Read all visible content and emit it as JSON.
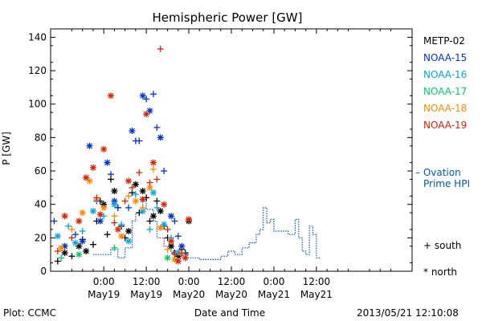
{
  "chart_data": {
    "type": "scatter",
    "title": "Hemispheric Power [GW]",
    "ylabel": "P [GW]",
    "xlabel": "Date and Time",
    "ylim": [
      0,
      145
    ],
    "yticks": [
      0,
      20,
      40,
      60,
      80,
      100,
      120,
      140
    ],
    "xrange_hours": [
      -15,
      87
    ],
    "xticks": [
      {
        "h": 0,
        "time": "0:00",
        "date": "May19"
      },
      {
        "h": 12,
        "time": "12:00",
        "date": "May19"
      },
      {
        "h": 24,
        "time": "0:00",
        "date": "May20"
      },
      {
        "h": 36,
        "time": "12:00",
        "date": "May20"
      },
      {
        "h": 48,
        "time": "0:00",
        "date": "May21"
      },
      {
        "h": 60,
        "time": "12:00",
        "date": "May21"
      }
    ],
    "legend_position": "right",
    "series": [
      {
        "name": "METP-02",
        "color": "#000000",
        "points": [
          [
            -13,
            6,
            "+"
          ],
          [
            -11,
            11,
            "*"
          ],
          [
            -9,
            9,
            "+"
          ],
          [
            -7,
            15,
            "*"
          ],
          [
            -6,
            19,
            "+"
          ],
          [
            -5,
            12,
            "*"
          ],
          [
            -3,
            16,
            "+"
          ],
          [
            -2,
            30,
            "+"
          ],
          [
            -1,
            42,
            "+"
          ],
          [
            0,
            40,
            "*"
          ],
          [
            1,
            22,
            "+"
          ],
          [
            2,
            55,
            "+"
          ],
          [
            3,
            48,
            "*"
          ],
          [
            4,
            38,
            "+"
          ],
          [
            5,
            27,
            "+"
          ],
          [
            6,
            20,
            "+"
          ],
          [
            7,
            24,
            "*"
          ],
          [
            8,
            47,
            "+"
          ],
          [
            9,
            52,
            "*"
          ],
          [
            10,
            35,
            "+"
          ],
          [
            11,
            48,
            "*"
          ],
          [
            12,
            44,
            "+"
          ],
          [
            13,
            30,
            "+"
          ],
          [
            14,
            33,
            "*"
          ],
          [
            15,
            42,
            "+"
          ],
          [
            16,
            36,
            "*"
          ],
          [
            17,
            27,
            "+"
          ],
          [
            18,
            20,
            "+"
          ],
          [
            19,
            15,
            "*"
          ],
          [
            20,
            11,
            "+"
          ],
          [
            21,
            9,
            "*"
          ],
          [
            22,
            13,
            "+"
          ],
          [
            23,
            11,
            "+"
          ],
          [
            24,
            30,
            "*"
          ]
        ]
      },
      {
        "name": "NOAA-15",
        "color": "#0033cc",
        "points": [
          [
            -14,
            30,
            "+"
          ],
          [
            -11,
            15,
            "*"
          ],
          [
            -8,
            22,
            "+"
          ],
          [
            -6,
            18,
            "*"
          ],
          [
            -4,
            75,
            "*"
          ],
          [
            -2,
            42,
            "+"
          ],
          [
            -1,
            30,
            "*"
          ],
          [
            1,
            65,
            "*"
          ],
          [
            2,
            58,
            "+"
          ],
          [
            3,
            42,
            "*"
          ],
          [
            4,
            38,
            "+"
          ],
          [
            7,
            38,
            "+"
          ],
          [
            8,
            84,
            "*"
          ],
          [
            9,
            78,
            "+"
          ],
          [
            10,
            78,
            "+"
          ],
          [
            11,
            105,
            "*"
          ],
          [
            12,
            103,
            "+"
          ],
          [
            13,
            96,
            "*"
          ],
          [
            14,
            106,
            "+"
          ],
          [
            15,
            86,
            "+"
          ],
          [
            16,
            80,
            "*"
          ],
          [
            17,
            60,
            "+"
          ],
          [
            19,
            33,
            "*"
          ],
          [
            20,
            30,
            "+"
          ],
          [
            21,
            21,
            "+"
          ],
          [
            22,
            15,
            "*"
          ],
          [
            23,
            10,
            "+"
          ]
        ]
      },
      {
        "name": "NOAA-16",
        "color": "#00aadd",
        "points": [
          [
            -13,
            21,
            "*"
          ],
          [
            -10,
            27,
            "+"
          ],
          [
            -8,
            17,
            "*"
          ],
          [
            -6,
            24,
            "+"
          ],
          [
            -3,
            36,
            "*"
          ],
          [
            0,
            33,
            "+"
          ],
          [
            3,
            40,
            "*"
          ],
          [
            5,
            28,
            "+"
          ],
          [
            7,
            18,
            "*"
          ],
          [
            9,
            46,
            "+"
          ],
          [
            11,
            36,
            "*"
          ],
          [
            13,
            25,
            "+"
          ],
          [
            14,
            47,
            "*"
          ],
          [
            15,
            38,
            "+"
          ],
          [
            17,
            28,
            "*"
          ],
          [
            19,
            20,
            "+"
          ],
          [
            21,
            11,
            "*"
          ],
          [
            23,
            8,
            "+"
          ]
        ]
      },
      {
        "name": "NOAA-17",
        "color": "#00cc66",
        "points": [
          [
            -12,
            8,
            "+"
          ],
          [
            -7,
            10,
            "*"
          ],
          [
            3,
            14,
            "+"
          ],
          [
            18,
            8,
            "*"
          ]
        ]
      },
      {
        "name": "NOAA-18",
        "color": "#ff8800",
        "points": [
          [
            -12,
            14,
            "*"
          ],
          [
            -9,
            25,
            "+"
          ],
          [
            -6,
            35,
            "*"
          ],
          [
            -4,
            54,
            "*"
          ],
          [
            -2,
            43,
            "+"
          ],
          [
            0,
            38,
            "*"
          ],
          [
            3,
            33,
            "+"
          ],
          [
            5,
            21,
            "*"
          ],
          [
            7,
            45,
            "+"
          ],
          [
            9,
            42,
            "*"
          ],
          [
            11,
            38,
            "+"
          ],
          [
            13,
            50,
            "*"
          ],
          [
            14,
            61,
            "+"
          ],
          [
            16,
            26,
            "*"
          ],
          [
            18,
            13,
            "+"
          ],
          [
            20,
            7,
            "*"
          ],
          [
            22,
            10,
            "+"
          ],
          [
            24,
            31,
            "+"
          ]
        ]
      },
      {
        "name": "NOAA-19",
        "color": "#dd2200",
        "points": [
          [
            -13,
            12,
            "+"
          ],
          [
            -11,
            33,
            "*"
          ],
          [
            -9,
            20,
            "+"
          ],
          [
            -7,
            30,
            "*"
          ],
          [
            -5,
            56,
            "*"
          ],
          [
            -3,
            62,
            "*"
          ],
          [
            -2,
            44,
            "+"
          ],
          [
            -1,
            34,
            "*"
          ],
          [
            0,
            73,
            "*"
          ],
          [
            2,
            105,
            "*"
          ],
          [
            3,
            29,
            "+"
          ],
          [
            4,
            25,
            "*"
          ],
          [
            6,
            42,
            "+"
          ],
          [
            7,
            54,
            "*"
          ],
          [
            8,
            50,
            "+"
          ],
          [
            10,
            59,
            "+"
          ],
          [
            11,
            43,
            "*"
          ],
          [
            12,
            94,
            "*"
          ],
          [
            13,
            53,
            "+"
          ],
          [
            14,
            65,
            "*"
          ],
          [
            15,
            55,
            "+"
          ],
          [
            16,
            133,
            "+"
          ],
          [
            17,
            40,
            "*"
          ],
          [
            18,
            25,
            "+"
          ],
          [
            19,
            18,
            "*"
          ],
          [
            20,
            10,
            "+"
          ],
          [
            21,
            6,
            "*"
          ],
          [
            22,
            11,
            "+"
          ],
          [
            23,
            8,
            "*"
          ],
          [
            24,
            31,
            "*"
          ]
        ]
      }
    ],
    "ovation": {
      "name": "Ovation Prime HPI",
      "color": "#0055bb",
      "points": [
        [
          -3,
          10
        ],
        [
          2,
          10
        ],
        [
          2,
          13
        ],
        [
          4,
          13
        ],
        [
          4,
          8
        ],
        [
          6,
          8
        ],
        [
          6,
          14
        ],
        [
          8,
          14
        ],
        [
          8,
          30
        ],
        [
          9,
          30
        ],
        [
          9,
          35
        ],
        [
          11,
          35
        ],
        [
          11,
          42
        ],
        [
          12,
          42
        ],
        [
          12,
          37
        ],
        [
          14,
          37
        ],
        [
          14,
          30
        ],
        [
          15,
          30
        ],
        [
          15,
          20
        ],
        [
          17,
          20
        ],
        [
          17,
          15
        ],
        [
          19,
          15
        ],
        [
          19,
          12
        ],
        [
          21,
          12
        ],
        [
          21,
          10
        ],
        [
          23,
          10
        ],
        [
          23,
          8
        ],
        [
          27,
          8
        ],
        [
          27,
          7
        ],
        [
          33,
          7
        ],
        [
          33,
          9
        ],
        [
          35,
          9
        ],
        [
          35,
          12
        ],
        [
          37,
          12
        ],
        [
          37,
          10
        ],
        [
          39,
          10
        ],
        [
          39,
          14
        ],
        [
          41,
          14
        ],
        [
          41,
          17
        ],
        [
          43,
          17
        ],
        [
          43,
          22
        ],
        [
          44,
          22
        ],
        [
          44,
          25
        ],
        [
          45,
          25
        ],
        [
          45,
          38
        ],
        [
          46,
          38
        ],
        [
          46,
          29
        ],
        [
          47,
          29
        ],
        [
          47,
          31
        ],
        [
          48,
          31
        ],
        [
          48,
          24
        ],
        [
          52,
          24
        ],
        [
          52,
          22
        ],
        [
          54,
          22
        ],
        [
          54,
          31
        ],
        [
          55,
          31
        ],
        [
          55,
          20
        ],
        [
          56,
          20
        ],
        [
          56,
          12
        ],
        [
          57,
          12
        ],
        [
          57,
          10
        ],
        [
          58,
          10
        ],
        [
          58,
          27
        ],
        [
          59,
          27
        ],
        [
          59,
          22
        ],
        [
          60,
          22
        ],
        [
          60,
          8
        ],
        [
          61,
          8
        ]
      ]
    }
  },
  "labels": {
    "legend_ovation_line1": "– Ovation",
    "legend_ovation_line2": "Prime HPI",
    "marker_south_symbol": "+",
    "marker_south_label": "south",
    "marker_north_symbol": "*",
    "marker_north_label": "north",
    "plot_source": "Plot: CCMC",
    "timestamp": "2013/05/21 12:10:08"
  }
}
